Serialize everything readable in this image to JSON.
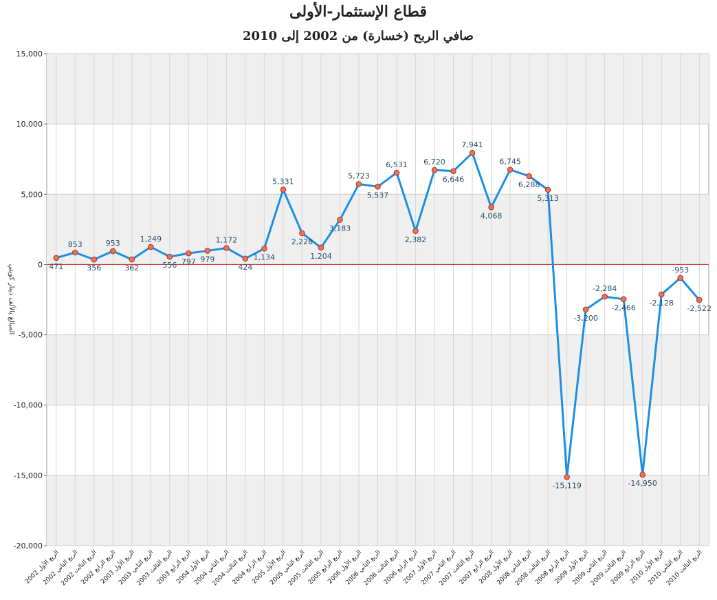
{
  "chart_data": {
    "type": "line",
    "title": "قطاع الإستثمار-الأولى",
    "subtitle": "صافي الربح (خسارة) من 2002 إلى 2010",
    "y_label": "المبالغ بالألف دينار كويتي",
    "categories": [
      "الربع الأول 2002",
      "الربع الثاني 2002",
      "الربع الثالث 2002",
      "الربع الرابع 2002",
      "الربع الأول 2003",
      "الربع الثاني 2003",
      "الربع الثالث 2003",
      "الربع الرابع 2003",
      "الربع الأول 2004",
      "الربع الثاني 2004",
      "الربع الثالث 2004",
      "الربع الرابع 2004",
      "الربع الأول 2005",
      "الربع الثاني 2005",
      "الربع الثالث 2005",
      "الربع الرابع 2005",
      "الربع الأول 2006",
      "الربع الثاني 2006",
      "الربع الثالث 2006",
      "الربع الرابع 2006",
      "الربع الأول 2007",
      "الربع الثاني 2007",
      "الربع الثالث 2007",
      "الربع الرابع 2007",
      "الربع الأول 2008",
      "الربع الثاني 2008",
      "الربع الثالث 2008",
      "الربع الرابع 2008",
      "الربع الأول 2009",
      "الربع الثاني 2009",
      "الربع الثالث 2009",
      "الربع الرابع 2009",
      "الربع الأول 2010",
      "الربع الثاني 2010",
      "الربع الثالث 2010"
    ],
    "series": [
      {
        "color": "#1b8fe3",
        "marker_color": "#f2714f",
        "values": [
          471,
          853,
          356,
          953,
          362,
          1249,
          556,
          797,
          979,
          1172,
          424,
          1134,
          5331,
          2228,
          1204,
          3183,
          5723,
          5537,
          6531,
          2382,
          6720,
          6646,
          7941,
          4068,
          6745,
          6288,
          5313,
          -15119,
          -3200,
          -2284,
          -2466,
          -14950,
          -2128,
          -953,
          -2522
        ],
        "value_labels": [
          "471",
          "853",
          "356",
          "953",
          "362",
          "1,249",
          "556",
          "797",
          "979",
          "1,172",
          "424",
          "1,134",
          "5,331",
          "2,228",
          "1,204",
          "3,183",
          "5,723",
          "5,537",
          "6,531",
          "2,382",
          "6,720",
          "6,646",
          "7,941",
          "4,068",
          "6,745",
          "6,288",
          "5,313",
          "-15,119",
          "-3,200",
          "-2,284",
          "-2,466",
          "-14,950",
          "-2,128",
          "-953",
          "-2,522"
        ]
      }
    ],
    "ylim": [
      -20000,
      15000
    ],
    "yticks": [
      {
        "value": -20000,
        "label": "-20,000"
      },
      {
        "value": -15000,
        "label": "-15,000"
      },
      {
        "value": -10000,
        "label": "-10,000"
      },
      {
        "value": -5000,
        "label": "-5,000"
      },
      0,
      {
        "value": 5000,
        "label": "5,000"
      },
      {
        "value": 10000,
        "label": "10,000"
      },
      {
        "value": 15000,
        "label": "15,000"
      }
    ],
    "grid": true,
    "zero_line_color": "#cc2222"
  }
}
